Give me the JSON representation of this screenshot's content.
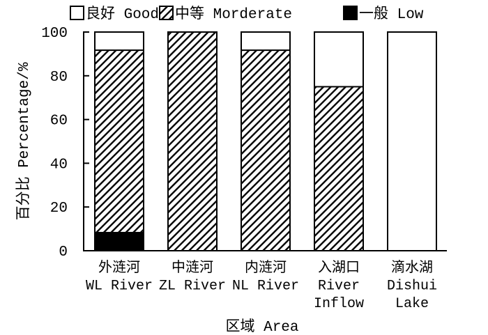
{
  "chart_data": {
    "type": "bar",
    "stacked": true,
    "xlabel": "区域 Area",
    "ylabel": "百分比 Percentage/%",
    "ylim": [
      0,
      100
    ],
    "yticks": [
      0,
      20,
      40,
      60,
      80,
      100
    ],
    "grid": false,
    "legend": "top",
    "categories": [
      [
        "外涟河",
        "WL River"
      ],
      [
        "中涟河",
        "ZL River"
      ],
      [
        "内涟河",
        "NL River"
      ],
      [
        "入湖口",
        "River",
        "Inflow"
      ],
      [
        "滴水湖",
        "Dishui",
        "Lake"
      ]
    ],
    "series": [
      {
        "name": "良好 Good",
        "color": "#ffffff",
        "hatched": false,
        "values": [
          8.3,
          0,
          8.3,
          25,
          100
        ]
      },
      {
        "name": "中等 Morderate",
        "color": "#ffffff",
        "hatched": true,
        "values": [
          83.4,
          100,
          91.7,
          75,
          0
        ]
      },
      {
        "name": "一般 Low",
        "color": "#000000",
        "hatched": false,
        "values": [
          8.3,
          0,
          0,
          0,
          0
        ]
      }
    ]
  }
}
